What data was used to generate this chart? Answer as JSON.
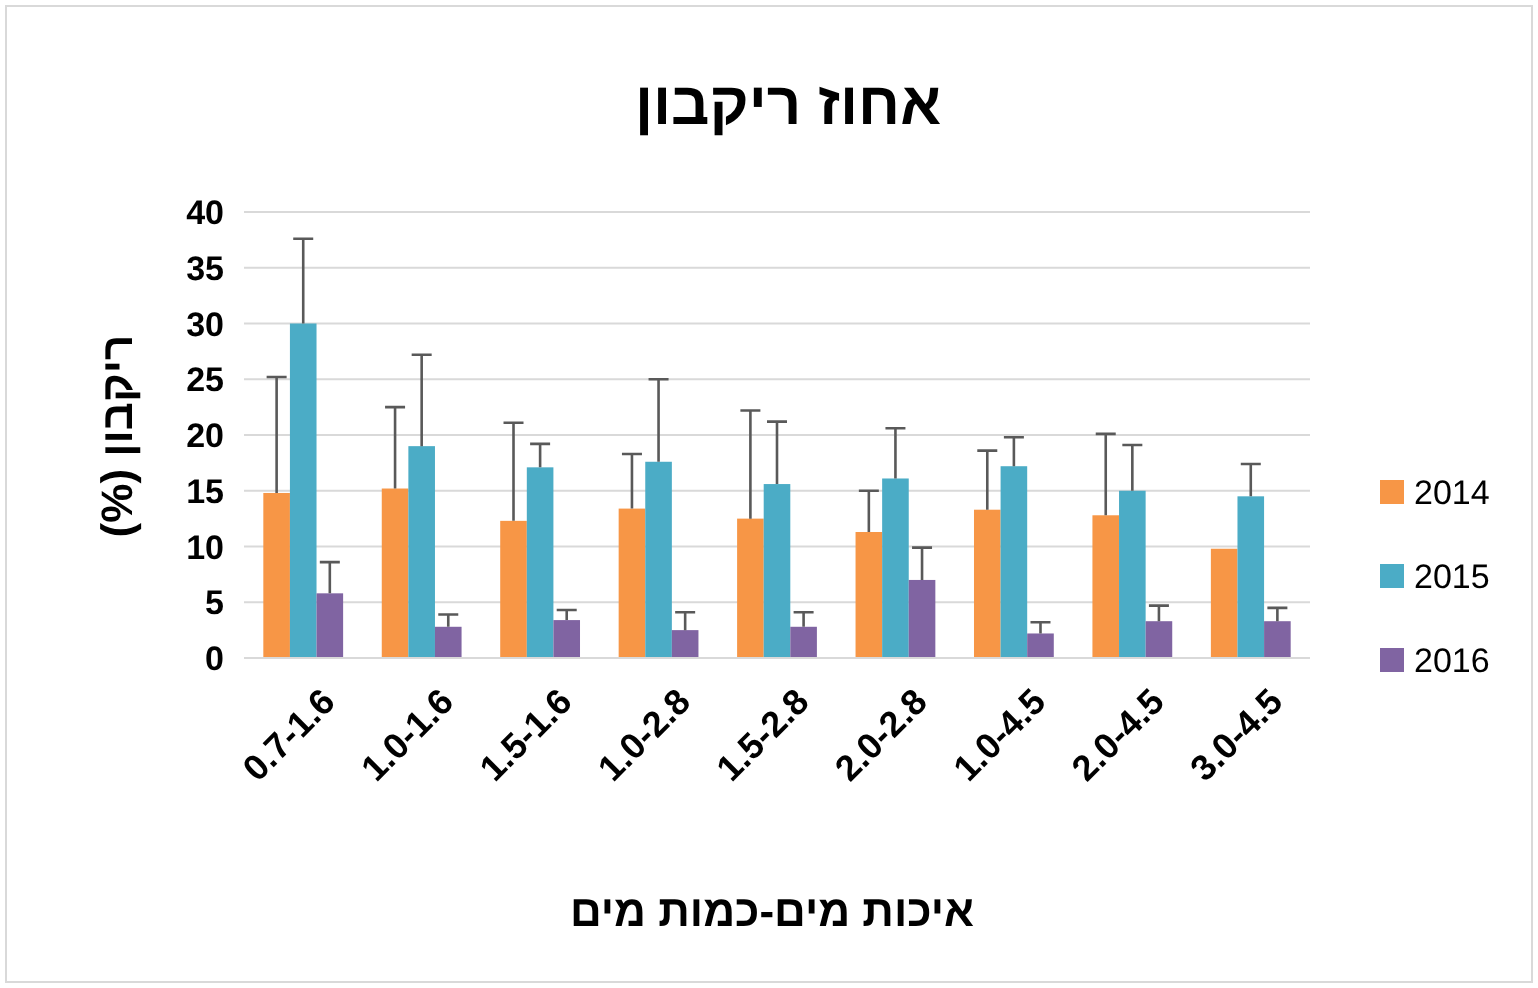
{
  "chart_data": {
    "type": "bar",
    "title": "אחוז ריקבון",
    "xlabel": "איכות מים-כמות מים",
    "ylabel": "ריקבון (%)",
    "categories": [
      "0.7-1.6",
      "1.0-1.6",
      "1.5-1.6",
      "1.0-2.8",
      "1.5-2.8",
      "2.0-2.8",
      "1.0-4.5",
      "2.0-4.5",
      "3.0-4.5"
    ],
    "series": [
      {
        "name": "2014",
        "color": "#f79646",
        "values": [
          14.8,
          15.2,
          12.3,
          13.4,
          12.5,
          11.3,
          13.3,
          12.8,
          9.8
        ],
        "errors": [
          [
            14.8,
            25.2
          ],
          [
            15.2,
            22.5
          ],
          [
            12.3,
            21.1
          ],
          [
            13.4,
            18.3
          ],
          [
            12.5,
            22.2
          ],
          [
            11.3,
            15.0
          ],
          [
            13.3,
            18.6
          ],
          [
            12.8,
            20.1
          ],
          null
        ]
      },
      {
        "name": "2015",
        "color": "#4bacc6",
        "values": [
          30.0,
          19.0,
          17.1,
          17.6,
          15.6,
          16.1,
          17.2,
          15.0,
          14.5
        ],
        "errors": [
          [
            30.0,
            37.6
          ],
          [
            19.0,
            27.2
          ],
          [
            17.1,
            19.2
          ],
          [
            17.6,
            25.0
          ],
          [
            15.6,
            21.2
          ],
          [
            16.1,
            20.6
          ],
          [
            17.2,
            19.8
          ],
          [
            15.0,
            19.1
          ],
          [
            14.5,
            17.4
          ]
        ]
      },
      {
        "name": "2016",
        "color": "#8064a2",
        "values": [
          5.8,
          2.8,
          3.4,
          2.5,
          2.8,
          7.0,
          2.2,
          3.3,
          3.3
        ],
        "errors": [
          [
            5.8,
            8.6
          ],
          [
            2.8,
            3.9
          ],
          [
            3.4,
            4.3
          ],
          [
            2.5,
            4.1
          ],
          [
            2.8,
            4.1
          ],
          [
            7.0,
            9.9
          ],
          [
            2.2,
            3.2
          ],
          [
            3.3,
            4.7
          ],
          [
            3.3,
            4.5
          ]
        ]
      }
    ],
    "ylim": [
      0,
      40
    ],
    "yticks": [
      0,
      5,
      10,
      15,
      20,
      25,
      30,
      35,
      40
    ],
    "grid": "y",
    "legend": "right"
  }
}
